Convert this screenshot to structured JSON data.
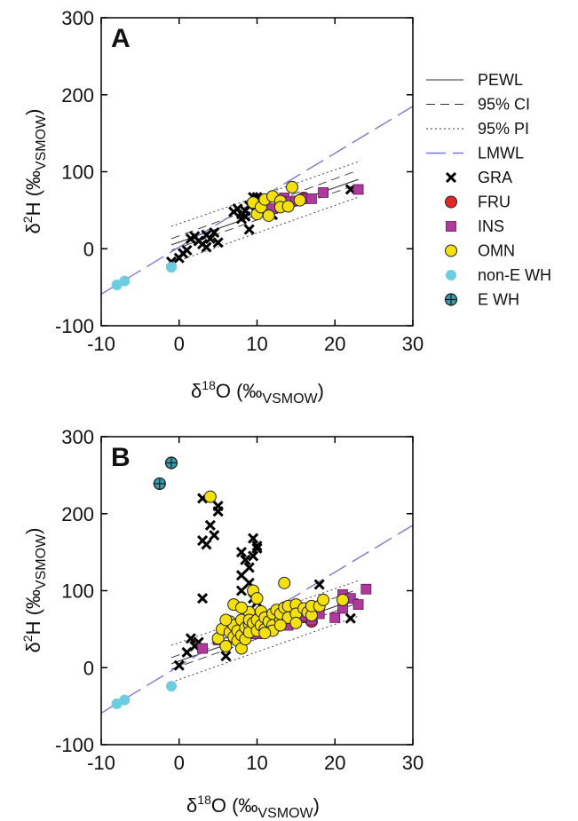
{
  "legend": [
    {
      "key": "pewl",
      "label": "PEWL",
      "kind": "line",
      "color": "#333333",
      "dash": ""
    },
    {
      "key": "ci",
      "label": "95% CI",
      "kind": "line",
      "color": "#333333",
      "dash": "10,6"
    },
    {
      "key": "pi",
      "label": "95% PI",
      "kind": "line",
      "color": "#333333",
      "dash": "2,3"
    },
    {
      "key": "lmwl",
      "label": "LMWL",
      "kind": "line",
      "color": "#7a7ad0",
      "dash": "22,8"
    },
    {
      "key": "GRA",
      "label": "GRA",
      "kind": "marker",
      "marker": "cross",
      "color": "#000000"
    },
    {
      "key": "FRU",
      "label": "FRU",
      "kind": "marker",
      "marker": "circle",
      "color": "#e02626"
    },
    {
      "key": "INS",
      "label": "INS",
      "kind": "marker",
      "marker": "square",
      "color": "#b0399e"
    },
    {
      "key": "OMN",
      "label": "OMN",
      "kind": "marker",
      "marker": "circle",
      "color": "#f4e00e"
    },
    {
      "key": "nonEWH",
      "label": "non-E WH",
      "kind": "marker",
      "marker": "dot",
      "color": "#6dcde0"
    },
    {
      "key": "EWH",
      "label": "E WH",
      "kind": "marker",
      "marker": "crosshair",
      "color": "#3a9aab"
    }
  ],
  "chart_data": [
    {
      "type": "scatter",
      "panel": "A",
      "xlabel_symbol": "δ",
      "xlabel_sup": "18",
      "xlabel_text": "O (‰",
      "xlabel_sub": "VSMOW",
      "xlabel_close": ")",
      "ylabel_symbol": "δ",
      "ylabel_sup": "2",
      "ylabel_text": "H (‰",
      "ylabel_sub": "VSMOW",
      "ylabel_close": ")",
      "xlim": [
        -10,
        30
      ],
      "ylim": [
        -100,
        300
      ],
      "xticks": [
        "-10",
        "0",
        "10",
        "20",
        "30"
      ],
      "yticks": [
        "-100",
        "0",
        "100",
        "200",
        "300"
      ],
      "lines": {
        "lmwl": {
          "x": [
            -10,
            30
          ],
          "y": [
            -59,
            185
          ]
        },
        "pewl": {
          "x": [
            -1,
            23
          ],
          "y": [
            5,
            90
          ]
        },
        "ci_upper": {
          "x": [
            -1,
            23
          ],
          "y": [
            13,
            102
          ]
        },
        "ci_lower": {
          "x": [
            -1,
            23
          ],
          "y": [
            -2,
            84
          ]
        },
        "pi_upper": {
          "x": [
            -1,
            23
          ],
          "y": [
            29,
            113
          ]
        },
        "pi_lower": {
          "x": [
            -1,
            23
          ],
          "y": [
            -19,
            67
          ]
        }
      },
      "series": [
        {
          "name": "GRA",
          "points": [
            [
              -1,
              -17
            ],
            [
              0,
              -12
            ],
            [
              0.5,
              -6
            ],
            [
              1,
              -2
            ],
            [
              1.5,
              13
            ],
            [
              2,
              16
            ],
            [
              2.5,
              10
            ],
            [
              3,
              6
            ],
            [
              3.5,
              18
            ],
            [
              3.5,
              2
            ],
            [
              4,
              13
            ],
            [
              4.5,
              21
            ],
            [
              5,
              8
            ],
            [
              7,
              48
            ],
            [
              7.5,
              52
            ],
            [
              8,
              45
            ],
            [
              8,
              39
            ],
            [
              8.5,
              49
            ],
            [
              8.5,
              42
            ],
            [
              9,
              56
            ],
            [
              9,
              25
            ],
            [
              9.5,
              67
            ],
            [
              10,
              67
            ],
            [
              12,
              44
            ],
            [
              22,
              77
            ]
          ]
        },
        {
          "name": "FRU",
          "points": [
            [
              15.5,
              63
            ],
            [
              16,
              66
            ]
          ]
        },
        {
          "name": "INS",
          "points": [
            [
              12,
              52
            ],
            [
              13,
              55
            ],
            [
              13.5,
              66
            ],
            [
              14,
              61
            ],
            [
              15,
              62
            ],
            [
              16,
              65
            ],
            [
              17,
              65
            ],
            [
              18.5,
              73
            ],
            [
              23,
              77
            ]
          ]
        },
        {
          "name": "OMN",
          "points": [
            [
              9.5,
              60
            ],
            [
              10,
              45
            ],
            [
              10.5,
              54
            ],
            [
              11,
              64
            ],
            [
              11.5,
              43
            ],
            [
              12,
              68
            ],
            [
              13,
              62
            ],
            [
              13,
              54
            ],
            [
              14,
              55
            ],
            [
              14.5,
              80
            ],
            [
              15.5,
              63
            ]
          ]
        },
        {
          "name": "non-E WH",
          "points": [
            [
              -8,
              -47
            ],
            [
              -7,
              -42
            ],
            [
              -1,
              -24
            ]
          ]
        }
      ]
    },
    {
      "type": "scatter",
      "panel": "B",
      "xlabel_symbol": "δ",
      "xlabel_sup": "18",
      "xlabel_text": "O (‰",
      "xlabel_sub": "VSMOW",
      "xlabel_close": ")",
      "ylabel_symbol": "δ",
      "ylabel_sup": "2",
      "ylabel_text": "H (‰",
      "ylabel_sub": "VSMOW",
      "ylabel_close": ")",
      "xlim": [
        -10,
        30
      ],
      "ylim": [
        -100,
        300
      ],
      "xticks": [
        "-10",
        "0",
        "10",
        "20",
        "30"
      ],
      "yticks": [
        "-100",
        "0",
        "100",
        "200",
        "300"
      ],
      "lines": {
        "lmwl": {
          "x": [
            -10,
            30
          ],
          "y": [
            -59,
            185
          ]
        },
        "pewl": {
          "x": [
            -1,
            23
          ],
          "y": [
            5,
            90
          ]
        },
        "ci_upper": {
          "x": [
            -1,
            23
          ],
          "y": [
            13,
            102
          ]
        },
        "ci_lower": {
          "x": [
            -1,
            23
          ],
          "y": [
            -2,
            84
          ]
        },
        "pi_upper": {
          "x": [
            -1,
            23
          ],
          "y": [
            29,
            113
          ]
        },
        "pi_lower": {
          "x": [
            -1,
            23
          ],
          "y": [
            -19,
            67
          ]
        }
      },
      "series": [
        {
          "name": "GRA",
          "points": [
            [
              0,
              3
            ],
            [
              1,
              20
            ],
            [
              1.5,
              38
            ],
            [
              2,
              28
            ],
            [
              2.5,
              33
            ],
            [
              3,
              90
            ],
            [
              3,
              220
            ],
            [
              3,
              165
            ],
            [
              3.5,
              160
            ],
            [
              4,
              185
            ],
            [
              4.5,
              172
            ],
            [
              5,
              210
            ],
            [
              5,
              203
            ],
            [
              6,
              15
            ],
            [
              6,
              60
            ],
            [
              7,
              40
            ],
            [
              8,
              150
            ],
            [
              8,
              120
            ],
            [
              8,
              100
            ],
            [
              8.5,
              140
            ],
            [
              9,
              130
            ],
            [
              9,
              110
            ],
            [
              9,
              45
            ],
            [
              9.5,
              168
            ],
            [
              9.5,
              145
            ],
            [
              10,
              158
            ],
            [
              10,
              155
            ],
            [
              9.5,
              90
            ],
            [
              10,
              85
            ],
            [
              10,
              65
            ],
            [
              18,
              108
            ],
            [
              22,
              64
            ]
          ]
        },
        {
          "name": "FRU",
          "points": [
            [
              9,
              45
            ],
            [
              10,
              50
            ],
            [
              11,
              55
            ],
            [
              12,
              57
            ],
            [
              13,
              63
            ],
            [
              14,
              60
            ],
            [
              15,
              65
            ],
            [
              16,
              66
            ],
            [
              17,
              60
            ],
            [
              17.5,
              72
            ],
            [
              12.5,
              54
            ],
            [
              11.5,
              52
            ]
          ]
        },
        {
          "name": "INS",
          "points": [
            [
              3,
              25
            ],
            [
              5,
              36
            ],
            [
              8,
              45
            ],
            [
              10,
              44
            ],
            [
              12,
              50
            ],
            [
              14,
              55
            ],
            [
              15,
              63
            ],
            [
              16,
              67
            ],
            [
              17,
              62
            ],
            [
              18,
              70
            ],
            [
              20,
              65
            ],
            [
              21,
              77
            ],
            [
              21,
              95
            ],
            [
              22,
              90
            ],
            [
              23,
              82
            ],
            [
              24,
              102
            ]
          ]
        },
        {
          "name": "OMN",
          "points": [
            [
              4,
              222
            ],
            [
              5,
              38
            ],
            [
              5.5,
              50
            ],
            [
              6,
              28
            ],
            [
              6.5,
              46
            ],
            [
              6.5,
              60
            ],
            [
              7,
              40
            ],
            [
              7,
              55
            ],
            [
              7.5,
              35
            ],
            [
              7.5,
              48
            ],
            [
              8,
              42
            ],
            [
              8,
              62
            ],
            [
              8,
              25
            ],
            [
              8.5,
              52
            ],
            [
              8.5,
              37
            ],
            [
              9,
              56
            ],
            [
              9,
              46
            ],
            [
              9,
              72
            ],
            [
              9,
              62
            ],
            [
              9.5,
              58
            ],
            [
              9.5,
              100
            ],
            [
              10,
              90
            ],
            [
              10,
              48
            ],
            [
              10,
              62
            ],
            [
              10.5,
              55
            ],
            [
              10.5,
              73
            ],
            [
              11,
              65
            ],
            [
              11,
              50
            ],
            [
              11.5,
              60
            ],
            [
              12,
              70
            ],
            [
              12,
              55
            ],
            [
              12.5,
              75
            ],
            [
              13,
              62
            ],
            [
              13,
              70
            ],
            [
              13.5,
              78
            ],
            [
              13.5,
              110
            ],
            [
              14,
              65
            ],
            [
              14,
              80
            ],
            [
              15,
              82
            ],
            [
              15,
              70
            ],
            [
              16,
              77
            ],
            [
              16.5,
              72
            ],
            [
              17,
              68
            ],
            [
              17,
              80
            ],
            [
              18,
              80
            ],
            [
              18.5,
              88
            ],
            [
              21,
              88
            ],
            [
              7,
              82
            ],
            [
              8,
              78
            ],
            [
              6,
              62
            ],
            [
              12,
              48
            ],
            [
              11,
              45
            ],
            [
              13,
              55
            ],
            [
              15,
              58
            ]
          ]
        },
        {
          "name": "non-E WH",
          "points": [
            [
              -8,
              -47
            ],
            [
              -7,
              -42
            ],
            [
              -1,
              -24
            ]
          ]
        },
        {
          "name": "E WH",
          "points": [
            [
              -1,
              266
            ],
            [
              -2.5,
              239
            ]
          ]
        }
      ]
    }
  ]
}
